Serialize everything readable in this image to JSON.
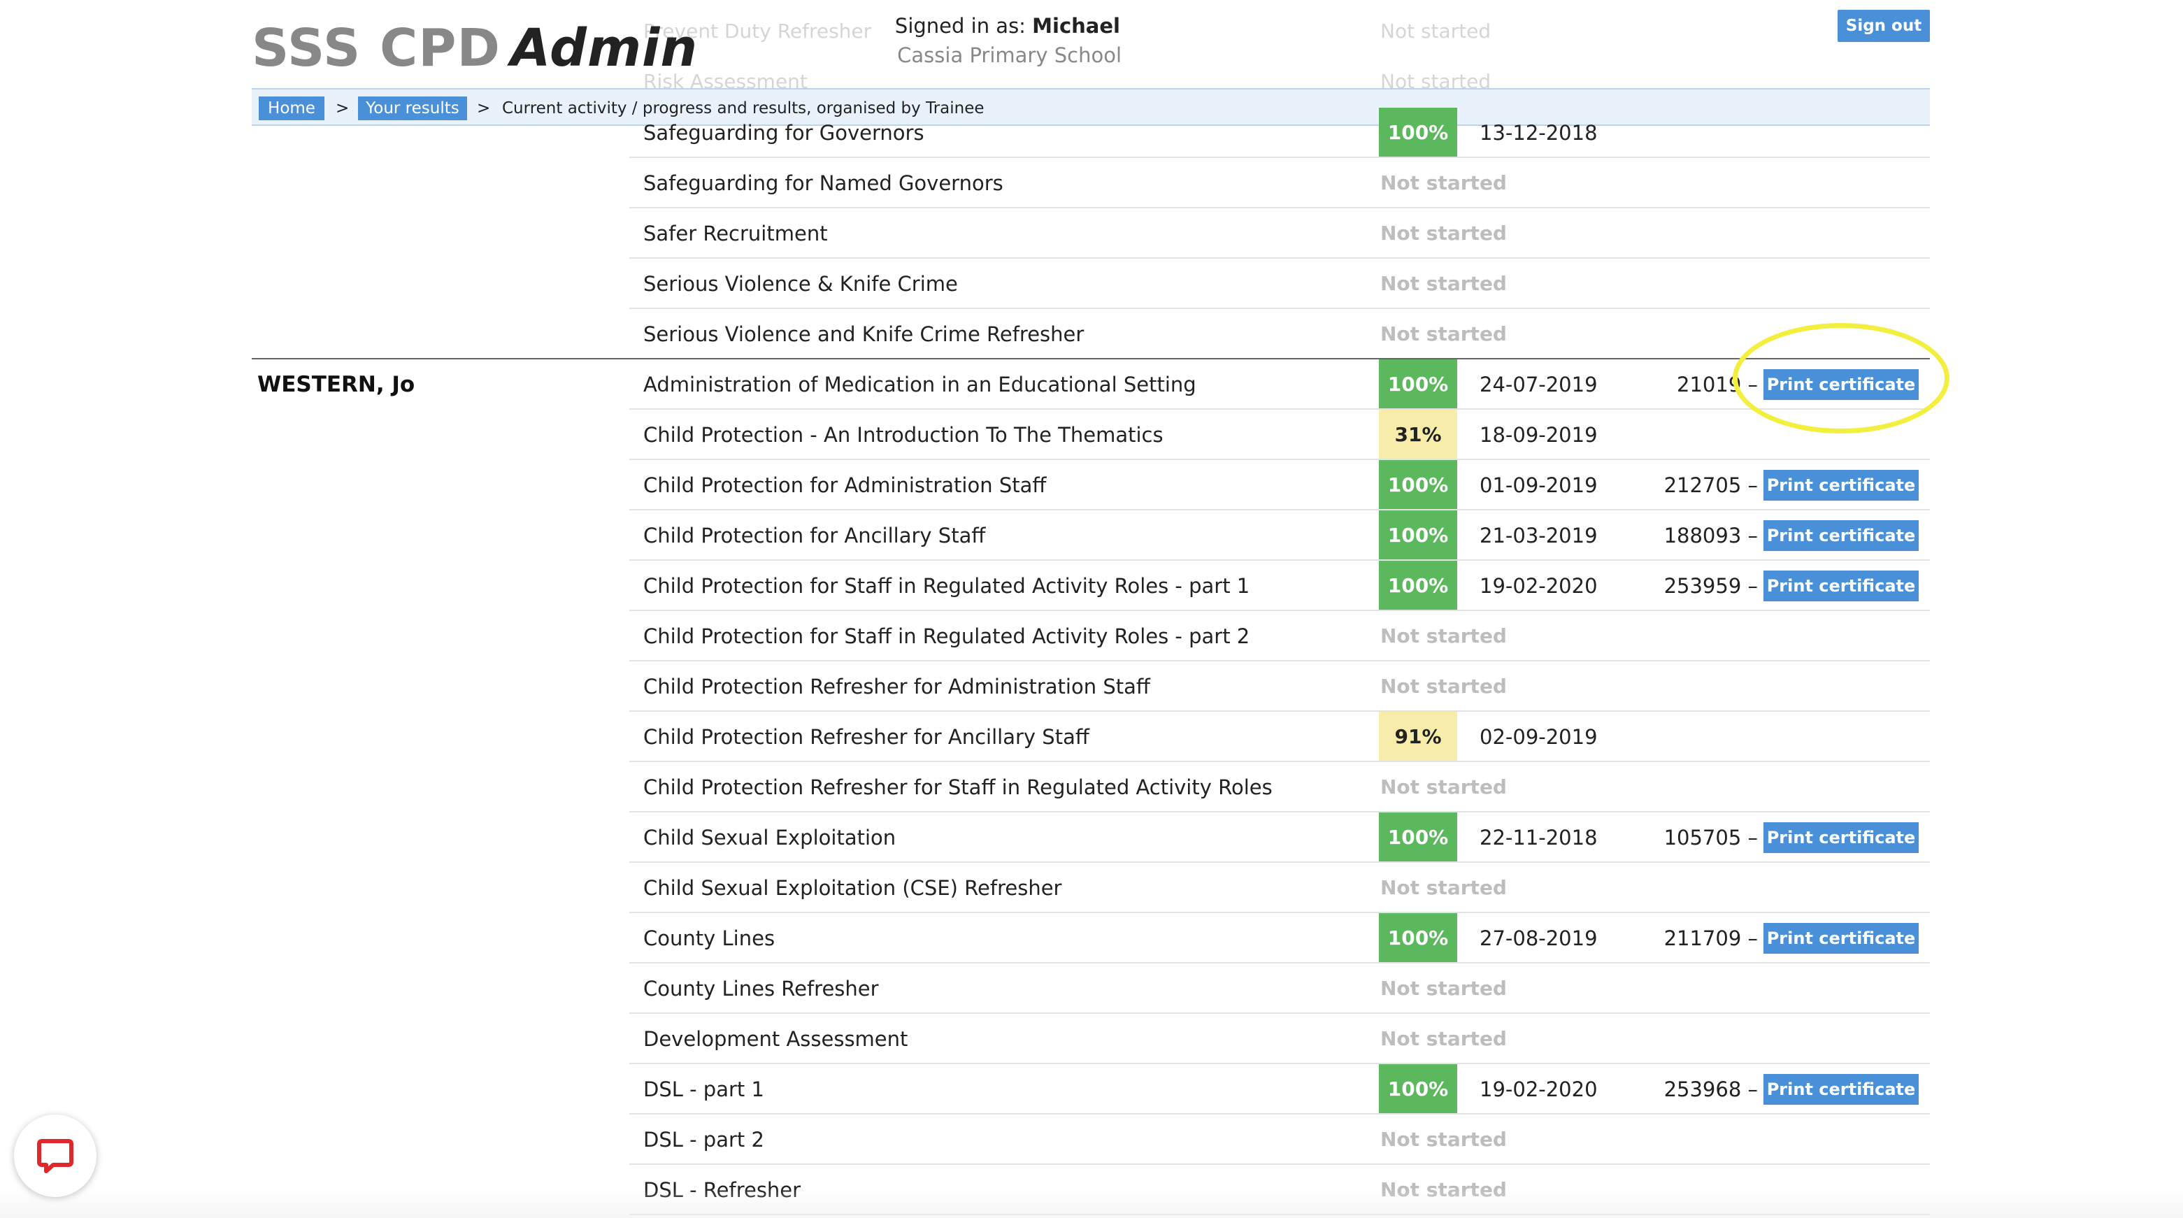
{
  "header": {
    "app_title": "SSS CPD",
    "app_title_em": "Admin",
    "signed_in_label": "Signed in as:",
    "signed_in_user": "Michael",
    "school": "Cassia Primary School",
    "sign_out_label": "Sign out",
    "faded_rows": [
      {
        "course": "Prevent Duty Refresher",
        "status": "Not started"
      },
      {
        "course": "Risk Assessment",
        "status": "Not started"
      }
    ]
  },
  "breadcrumb": {
    "home": "Home",
    "results": "Your results",
    "separator": ">",
    "current": "Current activity / progress and results, organised by Trainee"
  },
  "colors": {
    "accent": "#4a90d9",
    "complete": "#5cb85c",
    "partial": "#f7ecaa",
    "not_started": "#bdbdbd",
    "highlight": "#f3ef3e"
  },
  "previous_trainee_rows": [
    {
      "course": "Safeguarding for Governors",
      "score": "100%",
      "date": "13-12-2018",
      "status": "complete"
    },
    {
      "course": "Safeguarding for Named Governors",
      "status_text": "Not started",
      "status": "not_started"
    },
    {
      "course": "Safer Recruitment",
      "status_text": "Not started",
      "status": "not_started"
    },
    {
      "course": "Serious Violence & Knife Crime",
      "status_text": "Not started",
      "status": "not_started"
    },
    {
      "course": "Serious Violence and Knife Crime Refresher",
      "status_text": "Not started",
      "status": "not_started"
    }
  ],
  "trainee": {
    "name": "WESTERN, Jo",
    "rows": [
      {
        "course": "Administration of Medication in an Educational Setting",
        "score": "100%",
        "date": "24-07-2019",
        "cert": "21019",
        "cert_label": "Print certificate"
      },
      {
        "course": "Child Protection - An Introduction To The Thematics",
        "score": "31%",
        "date": "18-09-2019"
      },
      {
        "course": "Child Protection for Administration Staff",
        "score": "100%",
        "date": "01-09-2019",
        "cert": "212705",
        "cert_label": "Print certificate"
      },
      {
        "course": "Child Protection for Ancillary Staff",
        "score": "100%",
        "date": "21-03-2019",
        "cert": "188093",
        "cert_label": "Print certificate"
      },
      {
        "course": "Child Protection for Staff in Regulated Activity Roles - part 1",
        "score": "100%",
        "date": "19-02-2020",
        "cert": "253959",
        "cert_label": "Print certificate"
      },
      {
        "course": "Child Protection for Staff in Regulated Activity Roles - part 2",
        "status_text": "Not started"
      },
      {
        "course": "Child Protection Refresher for Administration Staff",
        "status_text": "Not started"
      },
      {
        "course": "Child Protection Refresher for Ancillary Staff",
        "score": "91%",
        "date": "02-09-2019"
      },
      {
        "course": "Child Protection Refresher for Staff in Regulated Activity Roles",
        "status_text": "Not started"
      },
      {
        "course": "Child Sexual Exploitation",
        "score": "100%",
        "date": "22-11-2018",
        "cert": "105705",
        "cert_label": "Print certificate"
      },
      {
        "course": "Child Sexual Exploitation (CSE) Refresher",
        "status_text": "Not started"
      },
      {
        "course": "County Lines",
        "score": "100%",
        "date": "27-08-2019",
        "cert": "211709",
        "cert_label": "Print certificate"
      },
      {
        "course": "County Lines Refresher",
        "status_text": "Not started"
      },
      {
        "course": "Development Assessment",
        "status_text": "Not started"
      },
      {
        "course": "DSL - part 1",
        "score": "100%",
        "date": "19-02-2020",
        "cert": "253968",
        "cert_label": "Print certificate"
      },
      {
        "course": "DSL - part 2",
        "status_text": "Not started"
      },
      {
        "course": "DSL - Refresher",
        "status_text": "Not started"
      }
    ]
  },
  "chat": {
    "icon": "chat-bubble-icon"
  }
}
